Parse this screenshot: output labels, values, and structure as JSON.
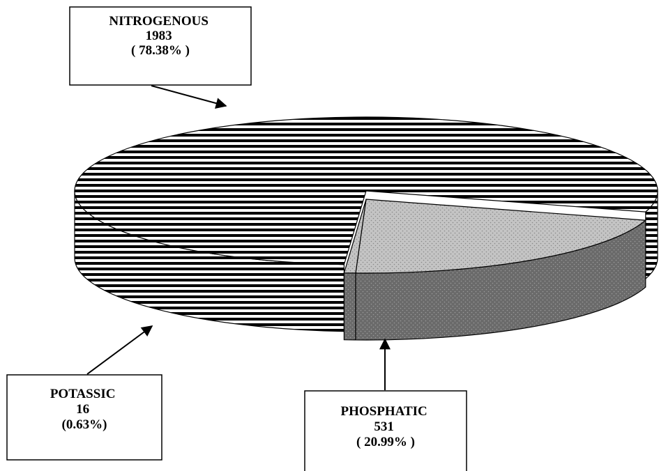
{
  "chart_data": {
    "type": "pie",
    "variant": "3d-exploded",
    "title": "",
    "slices": [
      {
        "key": "nitrogenous",
        "name": "NITROGENOUS",
        "value": 1983,
        "percent_label": "( 78.38% )",
        "fill": "horizontal-stripes"
      },
      {
        "key": "phosphatic",
        "name": "PHOSPHATIC",
        "value": 531,
        "percent_label": "( 20.99% )",
        "fill": "dotted-grey"
      },
      {
        "key": "potassic",
        "name": "POTASSIC",
        "value": 16,
        "percent_label": "(0.63%)",
        "fill": "dotted-grey"
      }
    ],
    "legend": "none",
    "colors": {
      "stripe": "#000000",
      "background": "#ffffff",
      "dots_top": "#c4c4c4",
      "dots_side": "#6a6a6a",
      "outline": "#000000"
    }
  }
}
